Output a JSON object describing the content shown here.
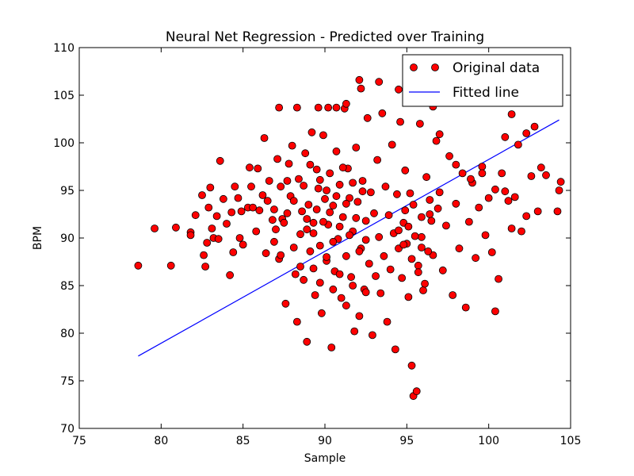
{
  "chart_data": {
    "type": "scatter",
    "title": "Neural Net Regression - Predicted over Training",
    "xlabel": "Sample",
    "ylabel": "BPM",
    "xlim": [
      75,
      105
    ],
    "ylim": [
      70,
      110
    ],
    "xticks": [
      75,
      80,
      85,
      90,
      95,
      100,
      105
    ],
    "yticks": [
      70,
      75,
      80,
      85,
      90,
      95,
      100,
      105,
      110
    ],
    "grid": false,
    "legend_position": "top-right",
    "colors": {
      "points": "#ff0000",
      "point_edge": "#000000",
      "line": "#0000ff"
    },
    "series": [
      {
        "name": "Original data",
        "kind": "scatter",
        "points": [
          [
            78.6,
            87.1
          ],
          [
            79.6,
            91.0
          ],
          [
            80.6,
            87.1
          ],
          [
            80.9,
            91.1
          ],
          [
            81.8,
            90.6
          ],
          [
            81.8,
            90.3
          ],
          [
            82.1,
            92.4
          ],
          [
            82.5,
            94.5
          ],
          [
            82.6,
            88.2
          ],
          [
            82.7,
            87.0
          ],
          [
            82.8,
            89.5
          ],
          [
            82.9,
            93.2
          ],
          [
            83.0,
            95.3
          ],
          [
            83.1,
            91.0
          ],
          [
            83.2,
            90.0
          ],
          [
            83.4,
            92.3
          ],
          [
            83.5,
            89.9
          ],
          [
            83.6,
            98.1
          ],
          [
            83.8,
            94.1
          ],
          [
            84.0,
            91.5
          ],
          [
            84.2,
            86.1
          ],
          [
            84.3,
            92.7
          ],
          [
            84.4,
            88.5
          ],
          [
            84.5,
            95.4
          ],
          [
            84.7,
            94.2
          ],
          [
            84.8,
            90.0
          ],
          [
            84.9,
            92.8
          ],
          [
            85.0,
            89.3
          ],
          [
            85.3,
            93.2
          ],
          [
            85.4,
            97.4
          ],
          [
            85.5,
            95.4
          ],
          [
            85.6,
            93.2
          ],
          [
            85.8,
            90.7
          ],
          [
            85.9,
            97.3
          ],
          [
            86.0,
            92.9
          ],
          [
            86.2,
            94.5
          ],
          [
            86.3,
            100.5
          ],
          [
            86.4,
            88.4
          ],
          [
            86.5,
            93.9
          ],
          [
            86.6,
            96.0
          ],
          [
            86.8,
            91.9
          ],
          [
            86.9,
            93.0
          ],
          [
            87.0,
            90.9
          ],
          [
            87.1,
            98.3
          ],
          [
            87.2,
            87.8
          ],
          [
            87.3,
            95.4
          ],
          [
            87.4,
            92.0
          ],
          [
            87.5,
            91.6
          ],
          [
            87.6,
            83.1
          ],
          [
            87.7,
            96.0
          ],
          [
            87.8,
            97.8
          ],
          [
            87.9,
            94.4
          ],
          [
            88.0,
            99.7
          ],
          [
            88.1,
            93.9
          ],
          [
            88.2,
            86.2
          ],
          [
            88.3,
            81.2
          ],
          [
            88.4,
            96.2
          ],
          [
            88.5,
            90.4
          ],
          [
            88.6,
            92.8
          ],
          [
            88.7,
            85.6
          ],
          [
            88.8,
            98.9
          ],
          [
            88.9,
            79.1
          ],
          [
            89.0,
            93.5
          ],
          [
            89.1,
            88.6
          ],
          [
            89.2,
            101.1
          ],
          [
            89.3,
            91.6
          ],
          [
            89.4,
            84.0
          ],
          [
            89.5,
            97.2
          ],
          [
            89.6,
            95.2
          ],
          [
            89.7,
            89.2
          ],
          [
            89.8,
            82.1
          ],
          [
            89.9,
            100.8
          ],
          [
            90.0,
            94.1
          ],
          [
            90.1,
            87.6
          ],
          [
            90.2,
            91.4
          ],
          [
            90.3,
            96.8
          ],
          [
            90.4,
            78.5
          ],
          [
            90.5,
            93.4
          ],
          [
            90.6,
            86.5
          ],
          [
            90.7,
            99.1
          ],
          [
            90.8,
            89.9
          ],
          [
            90.9,
            95.6
          ],
          [
            91.0,
            83.7
          ],
          [
            91.1,
            92.2
          ],
          [
            91.2,
            103.6
          ],
          [
            91.3,
            88.1
          ],
          [
            91.4,
            97.3
          ],
          [
            91.5,
            94.2
          ],
          [
            91.6,
            85.9
          ],
          [
            91.7,
            90.7
          ],
          [
            91.8,
            80.2
          ],
          [
            91.9,
            99.5
          ],
          [
            92.0,
            93.8
          ],
          [
            92.1,
            106.6
          ],
          [
            92.2,
            88.9
          ],
          [
            92.3,
            96.0
          ],
          [
            92.4,
            84.6
          ],
          [
            92.5,
            91.8
          ],
          [
            92.6,
            102.6
          ],
          [
            92.7,
            87.3
          ],
          [
            92.8,
            94.8
          ],
          [
            92.9,
            79.8
          ],
          [
            93.0,
            92.6
          ],
          [
            93.1,
            86.0
          ],
          [
            93.2,
            98.2
          ],
          [
            93.3,
            90.1
          ],
          [
            93.4,
            84.2
          ],
          [
            93.5,
            103.1
          ],
          [
            93.6,
            88.1
          ],
          [
            93.7,
            95.4
          ],
          [
            93.8,
            81.2
          ],
          [
            93.9,
            92.4
          ],
          [
            94.0,
            86.7
          ],
          [
            94.1,
            99.8
          ],
          [
            94.2,
            90.5
          ],
          [
            94.3,
            78.3
          ],
          [
            94.4,
            94.6
          ],
          [
            94.5,
            88.9
          ],
          [
            94.6,
            102.2
          ],
          [
            94.7,
            85.8
          ],
          [
            94.8,
            91.6
          ],
          [
            94.9,
            97.1
          ],
          [
            95.0,
            89.4
          ],
          [
            95.1,
            83.8
          ],
          [
            95.2,
            94.7
          ],
          [
            95.3,
            76.6
          ],
          [
            95.4,
            73.4
          ],
          [
            95.6,
            73.9
          ],
          [
            95.7,
            87.1
          ],
          [
            95.8,
            102.0
          ],
          [
            95.9,
            90.1
          ],
          [
            96.0,
            84.5
          ],
          [
            96.2,
            96.4
          ],
          [
            96.4,
            92.5
          ],
          [
            96.6,
            88.2
          ],
          [
            96.8,
            100.2
          ],
          [
            97.0,
            94.8
          ],
          [
            97.2,
            86.6
          ],
          [
            97.4,
            91.3
          ],
          [
            97.6,
            98.6
          ],
          [
            97.8,
            84.0
          ],
          [
            98.0,
            93.6
          ],
          [
            98.2,
            88.9
          ],
          [
            98.4,
            96.8
          ],
          [
            98.6,
            82.7
          ],
          [
            98.8,
            91.7
          ],
          [
            99.0,
            95.8
          ],
          [
            99.2,
            87.9
          ],
          [
            99.4,
            93.2
          ],
          [
            99.6,
            97.5
          ],
          [
            99.8,
            90.3
          ],
          [
            100.0,
            94.2
          ],
          [
            100.2,
            88.5
          ],
          [
            100.4,
            82.3
          ],
          [
            100.6,
            85.7
          ],
          [
            100.8,
            96.8
          ],
          [
            101.0,
            100.6
          ],
          [
            101.2,
            93.9
          ],
          [
            101.4,
            91.0
          ],
          [
            101.6,
            94.3
          ],
          [
            101.8,
            99.8
          ],
          [
            102.0,
            90.7
          ],
          [
            102.3,
            92.3
          ],
          [
            102.6,
            96.5
          ],
          [
            103.0,
            92.8
          ],
          [
            103.2,
            97.4
          ],
          [
            103.5,
            96.6
          ],
          [
            104.2,
            92.8
          ],
          [
            104.3,
            95.0
          ],
          [
            104.4,
            95.9
          ],
          [
            87.2,
            103.7
          ],
          [
            88.3,
            103.7
          ],
          [
            89.6,
            103.7
          ],
          [
            90.2,
            103.7
          ],
          [
            90.7,
            103.7
          ],
          [
            91.3,
            104.1
          ],
          [
            92.2,
            105.7
          ],
          [
            93.3,
            106.4
          ],
          [
            94.5,
            105.6
          ],
          [
            95.9,
            104.4
          ],
          [
            96.6,
            103.8
          ],
          [
            97.0,
            100.9
          ],
          [
            98.0,
            97.7
          ],
          [
            98.9,
            96.2
          ],
          [
            99.6,
            96.8
          ],
          [
            100.4,
            95.1
          ],
          [
            101.0,
            94.9
          ],
          [
            101.4,
            103.0
          ],
          [
            102.3,
            101.0
          ],
          [
            102.8,
            101.7
          ],
          [
            88.7,
            95.5
          ],
          [
            88.9,
            92.0
          ],
          [
            89.1,
            97.7
          ],
          [
            89.3,
            90.5
          ],
          [
            89.5,
            93.0
          ],
          [
            89.7,
            96.1
          ],
          [
            89.9,
            91.7
          ],
          [
            90.1,
            95.0
          ],
          [
            90.3,
            92.7
          ],
          [
            90.5,
            89.6
          ],
          [
            90.7,
            94.4
          ],
          [
            90.9,
            91.2
          ],
          [
            91.1,
            97.4
          ],
          [
            91.3,
            93.6
          ],
          [
            91.5,
            90.3
          ],
          [
            91.7,
            95.8
          ],
          [
            91.9,
            92.1
          ],
          [
            92.1,
            88.6
          ],
          [
            92.3,
            94.9
          ],
          [
            92.5,
            89.8
          ],
          [
            86.9,
            89.6
          ],
          [
            87.3,
            88.2
          ],
          [
            87.7,
            92.6
          ],
          [
            88.1,
            89.0
          ],
          [
            88.5,
            87.0
          ],
          [
            88.9,
            90.9
          ],
          [
            89.3,
            86.8
          ],
          [
            89.7,
            85.3
          ],
          [
            90.1,
            88.0
          ],
          [
            90.5,
            84.6
          ],
          [
            90.9,
            86.2
          ],
          [
            91.3,
            82.9
          ],
          [
            91.7,
            85.0
          ],
          [
            92.1,
            81.8
          ],
          [
            92.5,
            84.3
          ],
          [
            94.5,
            90.8
          ],
          [
            94.8,
            89.3
          ],
          [
            95.1,
            91.2
          ],
          [
            95.3,
            87.8
          ],
          [
            95.5,
            90.2
          ],
          [
            95.7,
            86.4
          ],
          [
            95.9,
            89.0
          ],
          [
            96.1,
            85.2
          ],
          [
            96.3,
            88.6
          ],
          [
            96.5,
            91.8
          ],
          [
            94.9,
            92.9
          ],
          [
            95.4,
            93.5
          ],
          [
            95.9,
            92.2
          ],
          [
            96.4,
            94.0
          ],
          [
            96.9,
            93.1
          ]
        ]
      },
      {
        "name": "Fitted line",
        "kind": "line",
        "points": [
          [
            78.6,
            77.6
          ],
          [
            104.3,
            102.4
          ]
        ]
      }
    ]
  }
}
